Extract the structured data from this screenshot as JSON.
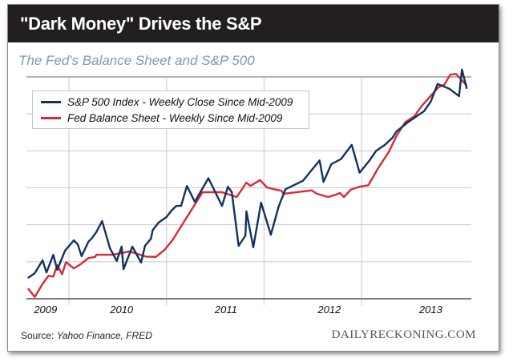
{
  "header": {
    "title": "\"Dark Money\" Drives the S&P",
    "subtitle": "The Fed's Balance Sheet and S&P 500"
  },
  "footer": {
    "source_label": "Source: ",
    "source_value": "Yahoo Finance, FRED",
    "brand": "DAILYRECKONING.COM"
  },
  "colors": {
    "title_bar": "#231f20",
    "subtitle": "#7a9bb5",
    "sp500": "#13325e",
    "fed": "#d62b35",
    "grid": "#c8c8c8"
  },
  "chart_data": {
    "type": "line",
    "title": "The Fed's Balance Sheet and S&P 500",
    "xlabel": "",
    "ylabel": "",
    "x_tick_labels": [
      "2009",
      "2010",
      "2011",
      "2012",
      "2013"
    ],
    "y_tick_labels": [],
    "y_units": "relative (unlabeled axis, gridline intervals)",
    "ylim": [
      0,
      6
    ],
    "xlim": [
      2009.58,
      2014.15
    ],
    "grid": true,
    "legend_position": "top-left",
    "series": [
      {
        "name": "S&P 500 Index - Weekly Close Since Mid-2009",
        "color": "#13325e",
        "x": [
          2009.58,
          2009.65,
          2009.73,
          2009.77,
          2009.84,
          2009.88,
          2009.96,
          2010.05,
          2010.09,
          2010.13,
          2010.2,
          2010.23,
          2010.28,
          2010.34,
          2010.42,
          2010.49,
          2010.54,
          2010.56,
          2010.65,
          2010.74,
          2010.78,
          2010.84,
          2010.86,
          2010.92,
          2011.0,
          2011.05,
          2011.1,
          2011.15,
          2011.21,
          2011.29,
          2011.43,
          2011.57,
          2011.63,
          2011.67,
          2011.74,
          2011.81,
          2011.82,
          2011.89,
          2011.97,
          2012.07,
          2012.15,
          2012.22,
          2012.4,
          2012.57,
          2012.61,
          2012.69,
          2012.79,
          2012.9,
          2012.98,
          2013.08,
          2013.15,
          2013.24,
          2013.32,
          2013.36,
          2013.48,
          2013.64,
          2013.71,
          2013.78,
          2013.9,
          2014.0,
          2014.03,
          2014.08
        ],
        "y": [
          0.56,
          0.69,
          1.04,
          0.71,
          1.19,
          0.78,
          1.3,
          1.58,
          1.47,
          1.15,
          1.54,
          1.62,
          1.8,
          2.1,
          1.37,
          1.02,
          1.41,
          0.8,
          1.41,
          0.98,
          1.43,
          1.62,
          1.86,
          2.06,
          2.21,
          2.38,
          2.51,
          2.51,
          3.05,
          2.62,
          3.26,
          2.51,
          3.03,
          2.88,
          1.43,
          1.71,
          2.36,
          1.39,
          2.6,
          1.73,
          2.49,
          2.96,
          3.19,
          3.74,
          3.16,
          3.64,
          3.78,
          4.16,
          3.41,
          3.73,
          4.0,
          4.16,
          4.36,
          4.53,
          4.78,
          5.07,
          5.33,
          5.81,
          5.68,
          5.48,
          6.2,
          5.68
        ]
      },
      {
        "name": "Fed Balance Sheet - Weekly Since Mid-2009",
        "color": "#d62b35",
        "x": [
          2009.58,
          2009.65,
          2009.73,
          2009.79,
          2009.84,
          2009.88,
          2009.93,
          2009.97,
          2010.05,
          2010.13,
          2010.2,
          2010.27,
          2010.28,
          2010.45,
          2010.62,
          2010.79,
          2010.89,
          2010.98,
          2011.06,
          2011.37,
          2011.57,
          2011.72,
          2011.82,
          2011.86,
          2011.96,
          2012.03,
          2012.09,
          2012.18,
          2012.2,
          2012.49,
          2012.54,
          2012.66,
          2012.74,
          2012.78,
          2012.82,
          2012.89,
          2012.98,
          2013.07,
          2013.17,
          2013.28,
          2013.36,
          2013.45,
          2013.54,
          2013.62,
          2013.7,
          2013.79,
          2013.85,
          2013.91,
          2013.97,
          2014.08
        ],
        "y": [
          0.28,
          0.05,
          0.4,
          0.62,
          0.6,
          0.91,
          0.66,
          0.99,
          0.82,
          0.95,
          1.1,
          1.13,
          1.19,
          1.19,
          1.28,
          1.14,
          1.13,
          1.32,
          1.58,
          2.88,
          2.88,
          2.75,
          3.14,
          3.05,
          3.21,
          3.01,
          2.97,
          2.92,
          2.84,
          2.93,
          2.84,
          2.75,
          2.82,
          2.86,
          2.75,
          2.95,
          3.03,
          3.07,
          3.53,
          3.97,
          4.41,
          4.78,
          4.93,
          5.22,
          5.46,
          5.72,
          5.79,
          6.06,
          6.08,
          5.76
        ]
      }
    ]
  }
}
